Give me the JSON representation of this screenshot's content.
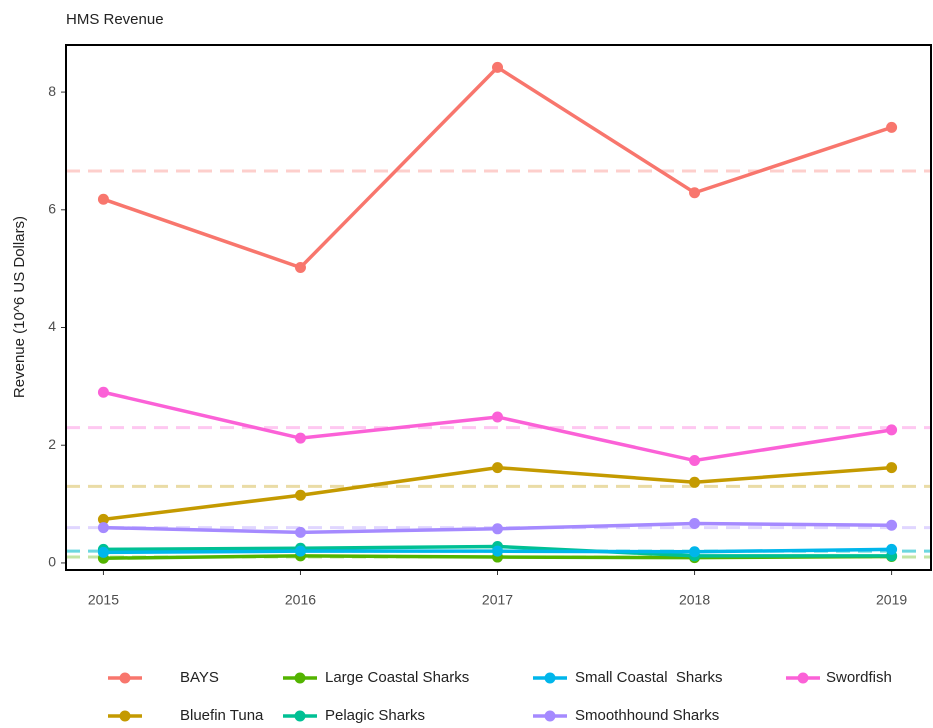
{
  "chart_data": {
    "type": "line",
    "title": "HMS Revenue",
    "y_label": "Revenue (10^6 US Dollars)",
    "x": [
      2015,
      2016,
      2017,
      2018,
      2019
    ],
    "xlim": [
      2014.81,
      2019.2
    ],
    "xticks": [
      2015,
      2016,
      2017,
      2018,
      2019
    ],
    "ylim": [
      -0.12,
      8.8
    ],
    "yticks": [
      0,
      2,
      4,
      6,
      8
    ],
    "grid": false,
    "legend": "bottom",
    "series": [
      {
        "name": "BAYS",
        "color": "#f8766d",
        "values": [
          6.18,
          5.02,
          8.42,
          6.29,
          7.4
        ],
        "mean": 6.66
      },
      {
        "name": "Bluefin Tuna",
        "color": "#c49a00",
        "values": [
          0.74,
          1.15,
          1.62,
          1.37,
          1.62
        ],
        "mean": 1.3
      },
      {
        "name": "Large Coastal Sharks",
        "color": "#53b400",
        "values": [
          0.08,
          0.12,
          0.1,
          0.09,
          0.11
        ],
        "mean": 0.1
      },
      {
        "name": "Pelagic Sharks",
        "color": "#00c094",
        "values": [
          0.23,
          0.25,
          0.28,
          0.12,
          0.12
        ],
        "mean": 0.2
      },
      {
        "name": "Small Coastal  Sharks",
        "color": "#00b6eb",
        "values": [
          0.18,
          0.2,
          0.2,
          0.19,
          0.23
        ],
        "mean": 0.2
      },
      {
        "name": "Smoothhound Sharks",
        "color": "#a58aff",
        "values": [
          0.6,
          0.52,
          0.58,
          0.67,
          0.64
        ],
        "mean": 0.6
      },
      {
        "name": "Swordfish",
        "color": "#fb61d7",
        "values": [
          2.9,
          2.12,
          2.48,
          1.74,
          2.26
        ],
        "mean": 2.3
      }
    ]
  }
}
